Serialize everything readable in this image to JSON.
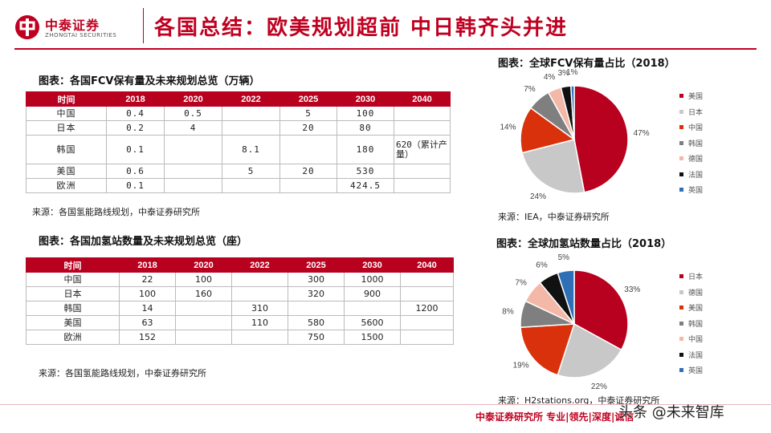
{
  "header": {
    "logo_cn": "中泰证券",
    "logo_en": "ZHONGTAI SECURITIES",
    "title": "各国总结：欧美规划超前 中日韩齐头并进"
  },
  "fcv_table": {
    "title": "图表：各国FCV保有量及未来规划总览（万辆）",
    "headers": [
      "时间",
      "2018",
      "2020",
      "2022",
      "2025",
      "2030",
      "2040"
    ],
    "rows": [
      [
        "中国",
        "0.4",
        "0.5",
        "",
        "5",
        "100",
        ""
      ],
      [
        "日本",
        "0.2",
        "4",
        "",
        "20",
        "80",
        ""
      ],
      [
        "韩国",
        "0.1",
        "",
        "8.1",
        "",
        "180",
        "620（累计产量）"
      ],
      [
        "美国",
        "0.6",
        "",
        "5",
        "20",
        "530",
        ""
      ],
      [
        "欧洲",
        "0.1",
        "",
        "",
        "",
        "424.5",
        ""
      ]
    ],
    "source": "来源：各国氢能路线规划，中泰证券研究所"
  },
  "station_table": {
    "title": "图表：各国加氢站数量及未来规划总览（座）",
    "headers": [
      "时间",
      "2018",
      "2020",
      "2022",
      "2025",
      "2030",
      "2040"
    ],
    "rows": [
      [
        "中国",
        "22",
        "100",
        "",
        "300",
        "1000",
        ""
      ],
      [
        "日本",
        "100",
        "160",
        "",
        "320",
        "900",
        ""
      ],
      [
        "韩国",
        "14",
        "",
        "310",
        "",
        "",
        "1200"
      ],
      [
        "美国",
        "63",
        "",
        "110",
        "580",
        "5600",
        ""
      ],
      [
        "欧洲",
        "152",
        "",
        "",
        "750",
        "1500",
        ""
      ]
    ],
    "source": "来源：各国氢能路线规划，中泰证券研究所"
  },
  "chart_data": [
    {
      "type": "pie",
      "title": "图表：全球FCV保有量占比（2018）",
      "source": "来源：IEA，中泰证券研究所",
      "slices": [
        {
          "label": "美国",
          "value": 47,
          "pct_label": "47%",
          "color": "#b8001f"
        },
        {
          "label": "日本",
          "value": 24,
          "pct_label": "24%",
          "color": "#c8c8c8"
        },
        {
          "label": "中国",
          "value": 14,
          "pct_label": "14%",
          "color": "#d9310b"
        },
        {
          "label": "韩国",
          "value": 7,
          "pct_label": "7%",
          "color": "#7f7f7f"
        },
        {
          "label": "德国",
          "value": 4,
          "pct_label": "4%",
          "color": "#f4b8a8"
        },
        {
          "label": "法国",
          "value": 3,
          "pct_label": "3%",
          "color": "#111111"
        },
        {
          "label": "英国",
          "value": 1,
          "pct_label": "1%",
          "color": "#2e6fb6"
        }
      ],
      "legend_placement": "right"
    },
    {
      "type": "pie",
      "title": "图表：全球加氢站数量占比（2018）",
      "source": "来源：H2stations.org，中泰证券研究所",
      "slices": [
        {
          "label": "日本",
          "value": 33,
          "pct_label": "33%",
          "color": "#b8001f"
        },
        {
          "label": "德国",
          "value": 22,
          "pct_label": "22%",
          "color": "#c8c8c8"
        },
        {
          "label": "美国",
          "value": 19,
          "pct_label": "19%",
          "color": "#d9310b"
        },
        {
          "label": "韩国",
          "value": 8,
          "pct_label": "8%",
          "color": "#7f7f7f"
        },
        {
          "label": "中国",
          "value": 7,
          "pct_label": "7%",
          "color": "#f4b8a8"
        },
        {
          "label": "法国",
          "value": 6,
          "pct_label": "6%",
          "color": "#111111"
        },
        {
          "label": "英国",
          "value": 5,
          "pct_label": "5%",
          "color": "#2e6fb6"
        }
      ],
      "legend_placement": "right"
    }
  ],
  "footer": {
    "text": "中泰证券研究所 专业|领先|深度|诚信",
    "watermark": "头条 @未来智库"
  }
}
